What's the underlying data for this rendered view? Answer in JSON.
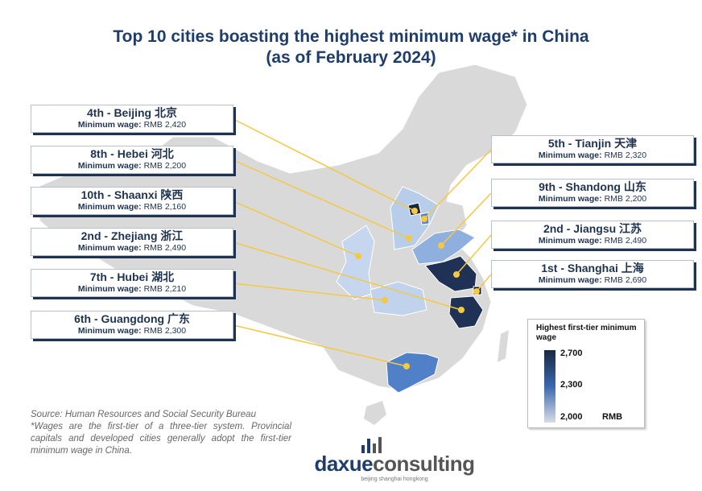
{
  "title": {
    "line1": "Top 10 cities boasting the highest minimum wage* in China",
    "line2": "(as of February 2024)"
  },
  "wage_label": "Minimum wage:",
  "cities": [
    {
      "heading": "4th - Beijing 北京",
      "wage": "RMB 2,420",
      "value": 2420
    },
    {
      "heading": "8th - Hebei 河北",
      "wage": "RMB 2,200",
      "value": 2200
    },
    {
      "heading": "10th - Shaanxi 陕西",
      "wage": "RMB 2,160",
      "value": 2160
    },
    {
      "heading": "2nd - Zhejiang 浙江",
      "wage": "RMB 2,490",
      "value": 2490
    },
    {
      "heading": "7th - Hubei 湖北",
      "wage": "RMB 2,210",
      "value": 2210
    },
    {
      "heading": "6th - Guangdong 广东",
      "wage": "RMB 2,300",
      "value": 2300
    },
    {
      "heading": "5th - Tianjin 天津",
      "wage": "RMB 2,320",
      "value": 2320
    },
    {
      "heading": "9th - Shandong 山东",
      "wage": "RMB 2,200",
      "value": 2200
    },
    {
      "heading": "2nd - Jiangsu 江苏",
      "wage": "RMB 2,490",
      "value": 2490
    },
    {
      "heading": "1st - Shanghai 上海",
      "wage": "RMB 2,690",
      "value": 2690
    }
  ],
  "legend": {
    "title": "Highest first-tier minimum wage",
    "ticks": [
      "2,700",
      "2,300",
      "2,000"
    ],
    "unit": "RMB",
    "range": [
      2000,
      2700
    ],
    "colors": {
      "low": "#d8dde4",
      "mid": "#3a68ad",
      "high": "#1a2740"
    }
  },
  "source": {
    "line1": "Source: Human Resources and Social Security Bureau",
    "note": "*Wages are the first-tier of a three-tier system. Provincial capitals and developed cities generally adopt the first-tier minimum wage in China."
  },
  "logo": {
    "part1": "daxue",
    "part2": "consulting",
    "tagline": "beijing shanghai hongkong"
  },
  "colors": {
    "title": "#1f3d6b",
    "connector": "#f5c842",
    "land": "#d9d9d9"
  }
}
